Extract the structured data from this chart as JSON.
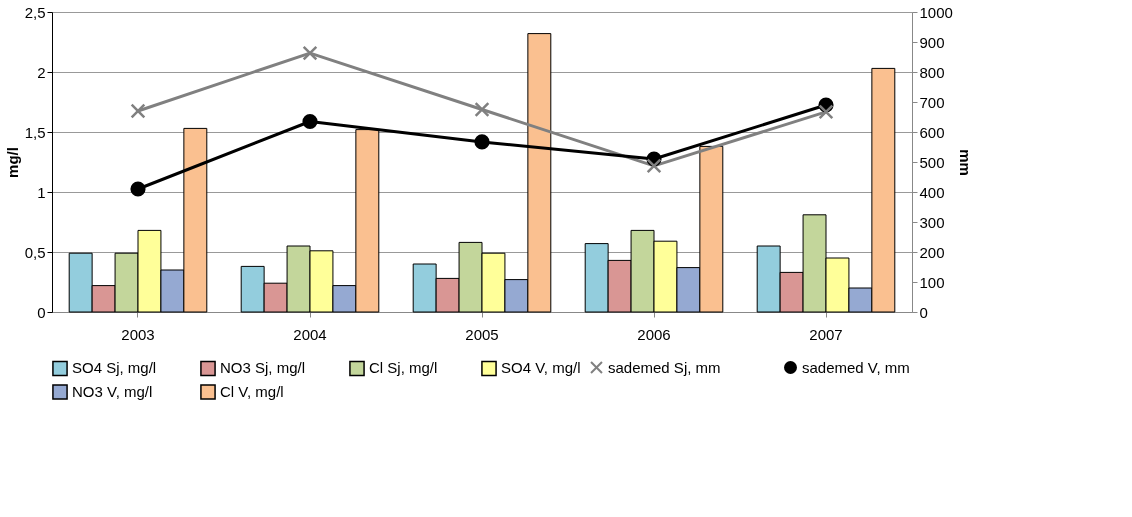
{
  "chart_data": {
    "type": "bar",
    "ylabel": "mg/l",
    "y2label": "mm",
    "categories": [
      "2003",
      "2004",
      "2005",
      "2006",
      "2007"
    ],
    "series": [
      {
        "name": "SO4 Sj, mg/l",
        "color": "#93cddd",
        "values": [
          0.49,
          0.38,
          0.4,
          0.57,
          0.55
        ]
      },
      {
        "name": "NO3 Sj, mg/l",
        "color": "#d99694",
        "values": [
          0.22,
          0.24,
          0.28,
          0.43,
          0.33
        ]
      },
      {
        "name": "Cl Sj, mg/l",
        "color": "#c3d69b",
        "values": [
          0.49,
          0.55,
          0.58,
          0.68,
          0.81
        ]
      },
      {
        "name": "SO4 V, mg/l",
        "color": "#ffff99",
        "values": [
          0.68,
          0.51,
          0.49,
          0.59,
          0.45
        ]
      },
      {
        "name": "NO3 V, mg/l",
        "color": "#95a9d2",
        "values": [
          0.35,
          0.22,
          0.27,
          0.37,
          0.2
        ]
      },
      {
        "name": "Cl V, mg/l",
        "color": "#fac090",
        "values": [
          1.53,
          1.52,
          2.32,
          1.38,
          2.03
        ]
      },
      {
        "name": "sademed Sj, mm",
        "type": "line",
        "axis": "y2",
        "marker": "cross",
        "color": "#808080",
        "values": [
          670,
          863,
          675,
          487,
          667
        ]
      },
      {
        "name": "sademed V, mm",
        "type": "line",
        "axis": "y2",
        "marker": "circle",
        "color": "#000000",
        "values": [
          410,
          635,
          567,
          510,
          690
        ]
      }
    ],
    "ylim": [
      0,
      2.5
    ],
    "yticks": [
      0,
      {
        "value": 0.5,
        "label": "0,5"
      },
      1,
      {
        "value": 1.5,
        "label": "1,5"
      },
      2,
      {
        "value": 2.5,
        "label": "2,5"
      }
    ],
    "y2lim": [
      0,
      1000
    ],
    "y2ticks": [
      0,
      100,
      200,
      300,
      400,
      500,
      600,
      700,
      800,
      900,
      1000
    ],
    "grid": "y",
    "legend": "bottom"
  }
}
